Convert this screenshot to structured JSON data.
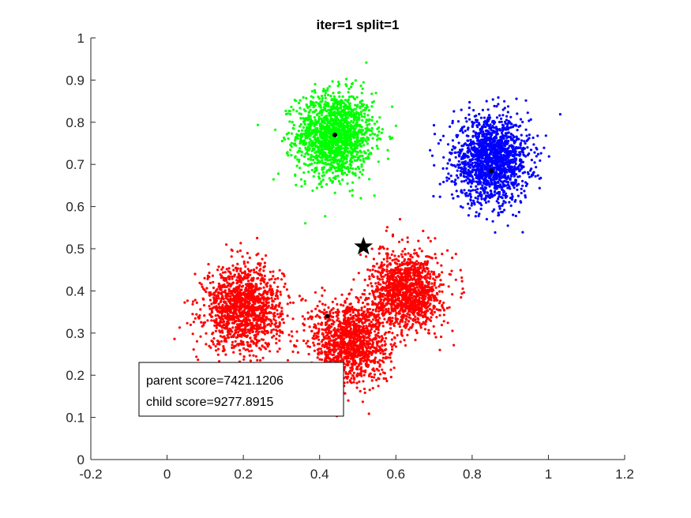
{
  "chart_data": {
    "type": "scatter",
    "title": "iter=1  split=1",
    "xlabel": "",
    "ylabel": "",
    "xlim": [
      -0.2,
      1.2
    ],
    "ylim": [
      0,
      1
    ],
    "xticks": [
      -0.2,
      0,
      0.2,
      0.4,
      0.6,
      0.8,
      1,
      1.2
    ],
    "xtick_labels": [
      "-0.2",
      "0",
      "0.2",
      "0.4",
      "0.6",
      "0.8",
      "1",
      "1.2"
    ],
    "yticks": [
      0,
      0.1,
      0.2,
      0.3,
      0.4,
      0.5,
      0.6,
      0.7,
      0.8,
      0.9,
      1
    ],
    "ytick_labels": [
      "0",
      "0.1",
      "0.2",
      "0.3",
      "0.4",
      "0.5",
      "0.6",
      "0.7",
      "0.8",
      "0.9",
      "1"
    ],
    "grid": false,
    "box": "off",
    "series": [
      {
        "color": "#00ff00",
        "cluster_centers": [
          {
            "x": 0.44,
            "y": 0.77,
            "sd": 0.05,
            "n": 1600
          }
        ]
      },
      {
        "color": "#0000ff",
        "cluster_centers": [
          {
            "x": 0.85,
            "y": 0.71,
            "sd": 0.05,
            "n": 1600
          }
        ]
      },
      {
        "color": "#ff0000",
        "cluster_centers": [
          {
            "x": 0.2,
            "y": 0.36,
            "sd": 0.05,
            "n": 1400
          },
          {
            "x": 0.48,
            "y": 0.28,
            "sd": 0.05,
            "n": 1300
          },
          {
            "x": 0.63,
            "y": 0.4,
            "sd": 0.045,
            "n": 1300
          }
        ]
      }
    ],
    "center_markers": [
      {
        "x": 0.44,
        "y": 0.77
      },
      {
        "x": 0.85,
        "y": 0.685
      },
      {
        "x": 0.42,
        "y": 0.34
      }
    ],
    "star_marker": {
      "x": 0.515,
      "y": 0.505
    },
    "annotation_lines": [
      "parent score=7421.1206",
      "child score=9277.8915"
    ]
  }
}
